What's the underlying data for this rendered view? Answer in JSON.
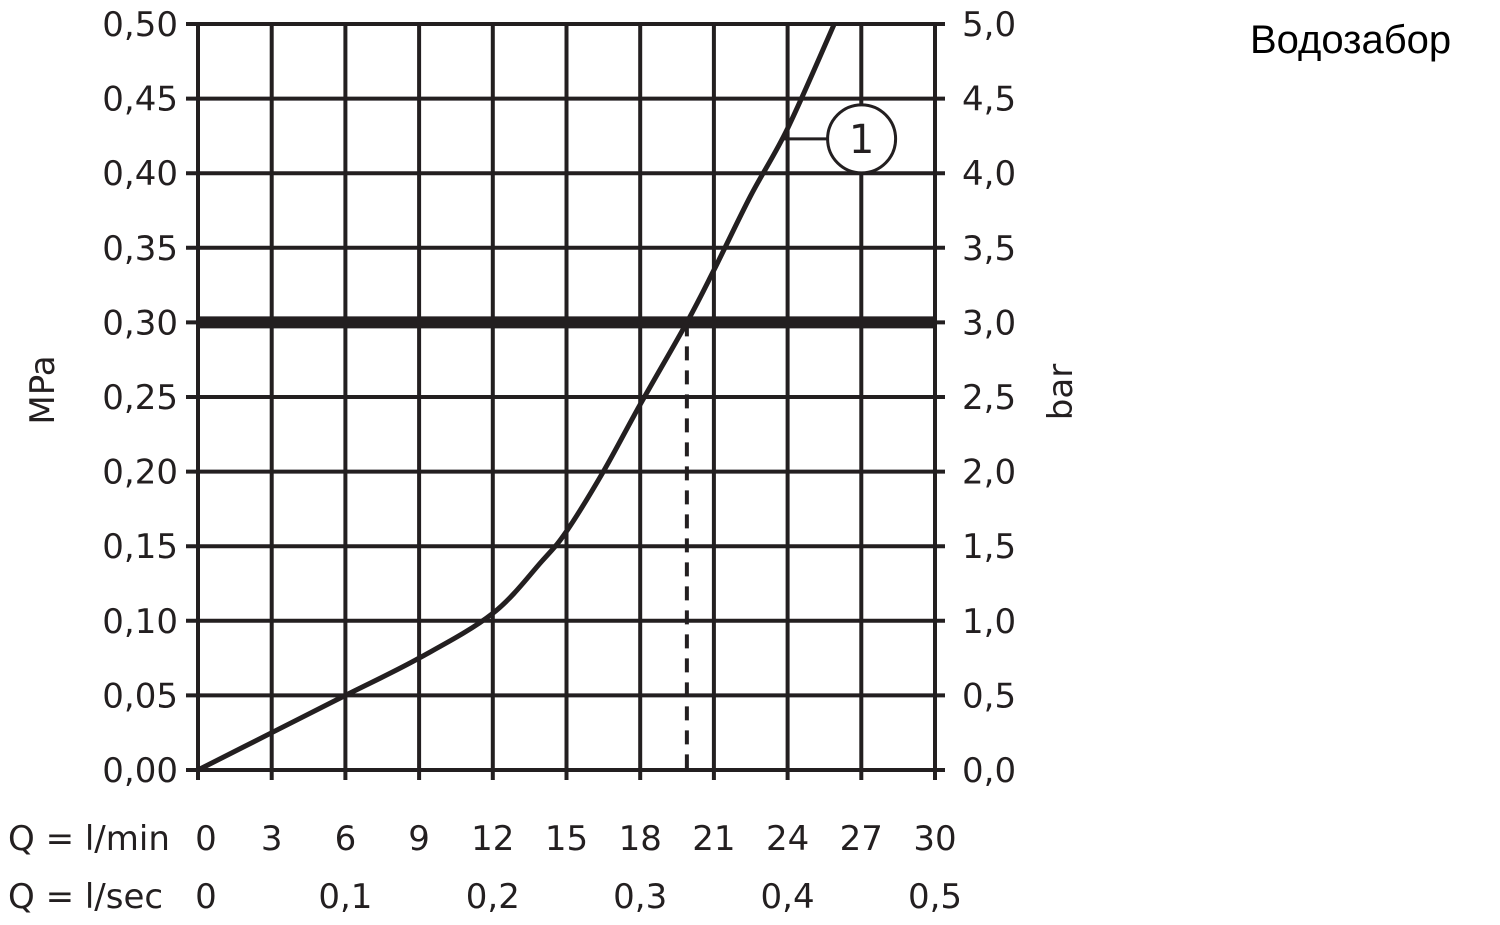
{
  "chart_data": {
    "type": "line",
    "title": "Водозабор",
    "ylabel_left": "MPa",
    "ylabel_right": "bar",
    "xlabel_rows": [
      {
        "prefix": "Q = l/min",
        "ticks": [
          {
            "x": 0,
            "label": "0"
          },
          {
            "x": 3,
            "label": "3"
          },
          {
            "x": 6,
            "label": "6"
          },
          {
            "x": 9,
            "label": "9"
          },
          {
            "x": 12,
            "label": "12"
          },
          {
            "x": 15,
            "label": "15"
          },
          {
            "x": 18,
            "label": "18"
          },
          {
            "x": 21,
            "label": "21"
          },
          {
            "x": 24,
            "label": "24"
          },
          {
            "x": 27,
            "label": "27"
          },
          {
            "x": 30,
            "label": "30"
          }
        ]
      },
      {
        "prefix": "Q = l/sec",
        "ticks": [
          {
            "x": 0,
            "label": "0"
          },
          {
            "x": 6,
            "label": "0,1"
          },
          {
            "x": 12,
            "label": "0,2"
          },
          {
            "x": 18,
            "label": "0,3"
          },
          {
            "x": 24,
            "label": "0,4"
          },
          {
            "x": 30,
            "label": "0,5"
          }
        ]
      }
    ],
    "xlim": [
      0,
      30
    ],
    "ylim": [
      0,
      0.5
    ],
    "yticks_left": [
      "0,00",
      "0,05",
      "0,10",
      "0,15",
      "0,20",
      "0,25",
      "0,30",
      "0,35",
      "0,40",
      "0,45",
      "0,50"
    ],
    "yticks_right": [
      "0,0",
      "0,5",
      "1,0",
      "1,5",
      "2,0",
      "2,5",
      "3,0",
      "3,5",
      "4,0",
      "4,5",
      "5,0"
    ],
    "grid": true,
    "series": [
      {
        "name": "1",
        "x": [
          0,
          3,
          6,
          9,
          12,
          14,
          15,
          16.5,
          18,
          19.9,
          21,
          22.5,
          24,
          25.9
        ],
        "y": [
          0,
          0.025,
          0.05,
          0.075,
          0.105,
          0.14,
          0.16,
          0.2,
          0.245,
          0.3,
          0.335,
          0.385,
          0.43,
          0.5
        ]
      }
    ],
    "reference_line": {
      "y": 0.3
    },
    "marker_line": {
      "x": 19.9,
      "style": "dashed"
    },
    "annotation": {
      "label": "1",
      "at_x": 24,
      "at_y": 0.425
    },
    "line_color": "#231f20"
  }
}
